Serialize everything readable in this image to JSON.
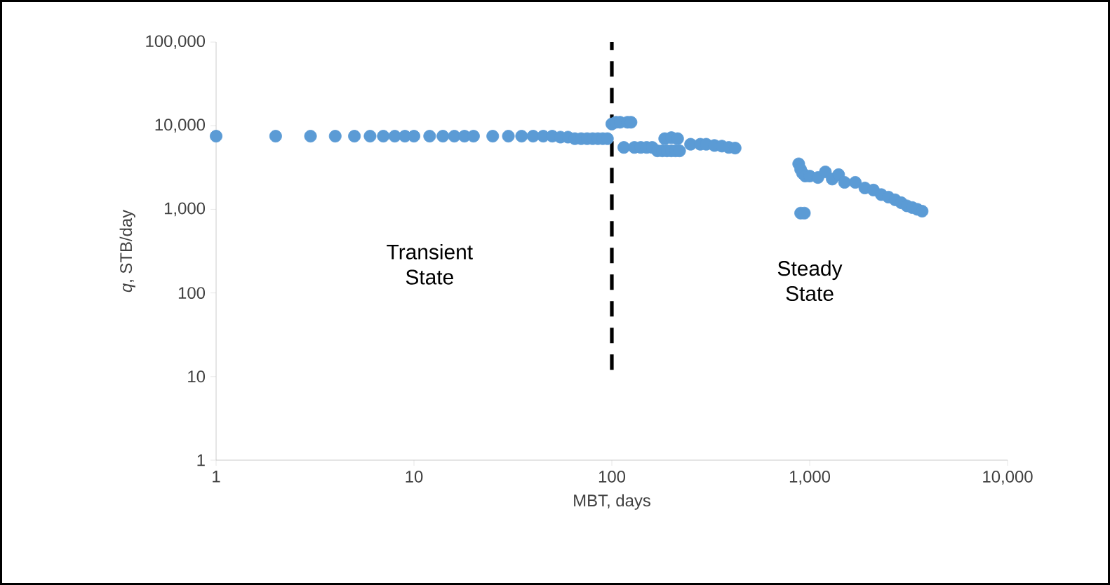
{
  "chart_data": {
    "type": "scatter",
    "xlabel": "MBT, days",
    "ylabel": "*q*, STB/day",
    "log": "xy",
    "grid": false,
    "marker": "circle",
    "xlim": [
      1,
      10000
    ],
    "ylim": [
      1,
      100000
    ],
    "xticks": [
      1,
      10,
      {
        "value": 100,
        "label": "100"
      },
      {
        "value": 1000,
        "label": "1,000"
      },
      {
        "value": 10000,
        "label": "10,000"
      }
    ],
    "yticks": [
      1,
      10,
      100,
      {
        "value": 1000,
        "label": "1,000"
      },
      {
        "value": 10000,
        "label": "10,000"
      },
      {
        "value": 100000,
        "label": "100,000"
      }
    ],
    "series": [
      {
        "color": "#5b9bd5",
        "x": [
          1,
          2,
          3,
          4,
          5,
          6,
          7,
          8,
          9,
          10,
          12,
          14,
          16,
          18,
          20,
          25,
          30,
          35,
          40,
          45,
          50,
          55,
          60,
          65,
          70,
          75,
          80,
          85,
          90,
          95,
          100,
          105,
          110,
          120,
          125,
          115,
          130,
          140,
          150,
          160,
          170,
          180,
          190,
          200,
          210,
          220,
          185,
          200,
          215,
          250,
          280,
          300,
          330,
          360,
          390,
          420,
          880,
          900,
          920,
          950,
          900,
          940,
          1000,
          1100,
          1200,
          1300,
          1400,
          1500,
          1700,
          1900,
          2100,
          2300,
          2500,
          2700,
          2900,
          3100,
          3300,
          3500,
          3700
        ],
        "values": [
          7500,
          7500,
          7500,
          7500,
          7500,
          7500,
          7500,
          7500,
          7500,
          7500,
          7500,
          7500,
          7500,
          7500,
          7500,
          7500,
          7500,
          7500,
          7500,
          7500,
          7500,
          7300,
          7300,
          7000,
          7000,
          7000,
          7000,
          7000,
          7000,
          7000,
          10500,
          11000,
          11000,
          11000,
          11000,
          5500,
          5500,
          5500,
          5500,
          5500,
          5000,
          5000,
          5000,
          5000,
          5000,
          5000,
          7000,
          7200,
          7000,
          6000,
          6000,
          6000,
          5800,
          5700,
          5500,
          5400,
          3500,
          3000,
          2700,
          2500,
          900,
          900,
          2500,
          2400,
          2800,
          2300,
          2600,
          2100,
          2100,
          1800,
          1700,
          1500,
          1400,
          1300,
          1200,
          1100,
          1050,
          1000,
          950
        ]
      }
    ],
    "ref_lines": [
      {
        "axis": "x",
        "value": 100,
        "color": "#000000",
        "line_style": "dashed"
      }
    ],
    "annotations": [
      "Transient State",
      "Steady State"
    ]
  }
}
